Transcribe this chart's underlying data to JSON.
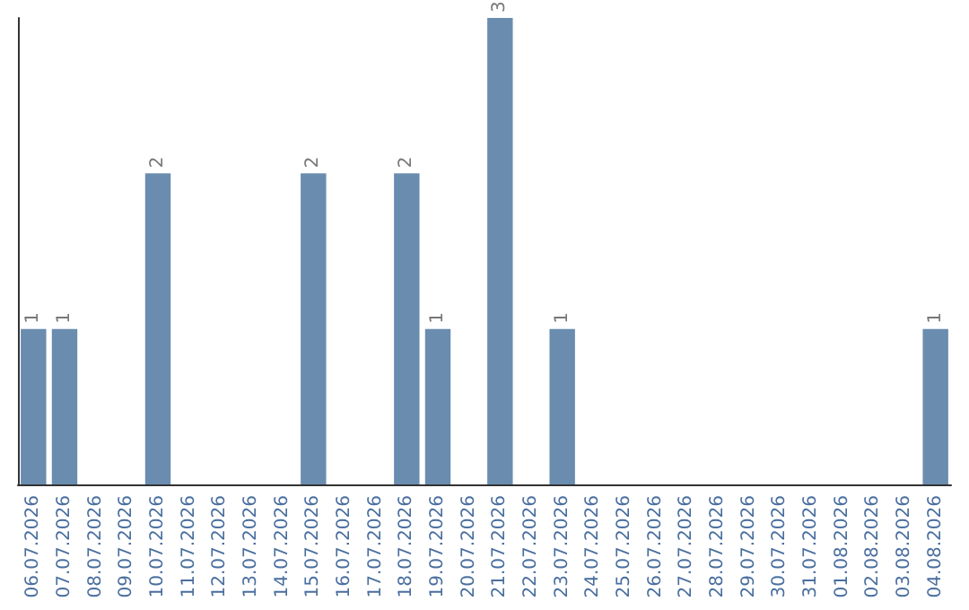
{
  "chart_data": {
    "type": "bar",
    "categories": [
      "06.07.2026",
      "07.07.2026",
      "08.07.2026",
      "09.07.2026",
      "10.07.2026",
      "11.07.2026",
      "12.07.2026",
      "13.07.2026",
      "14.07.2026",
      "15.07.2026",
      "16.07.2026",
      "17.07.2026",
      "18.07.2026",
      "19.07.2026",
      "20.07.2026",
      "21.07.2026",
      "22.07.2026",
      "23.07.2026",
      "24.07.2026",
      "25.07.2026",
      "26.07.2026",
      "27.07.2026",
      "28.07.2026",
      "29.07.2026",
      "30.07.2026",
      "31.07.2026",
      "01.08.2026",
      "02.08.2026",
      "03.08.2026",
      "04.08.2026"
    ],
    "values": [
      1,
      1,
      0,
      0,
      2,
      0,
      0,
      0,
      0,
      2,
      0,
      0,
      2,
      1,
      0,
      3,
      0,
      1,
      0,
      0,
      0,
      0,
      0,
      0,
      0,
      0,
      0,
      0,
      0,
      1
    ],
    "value_labels": [
      "1",
      "1",
      null,
      null,
      "2",
      null,
      null,
      null,
      null,
      "2",
      null,
      null,
      "2",
      "1",
      null,
      "3",
      null,
      "1",
      null,
      null,
      null,
      null,
      null,
      null,
      null,
      null,
      null,
      null,
      null,
      "1"
    ],
    "color": "#6a8caf",
    "grid": false,
    "tick_labels": "x"
  }
}
